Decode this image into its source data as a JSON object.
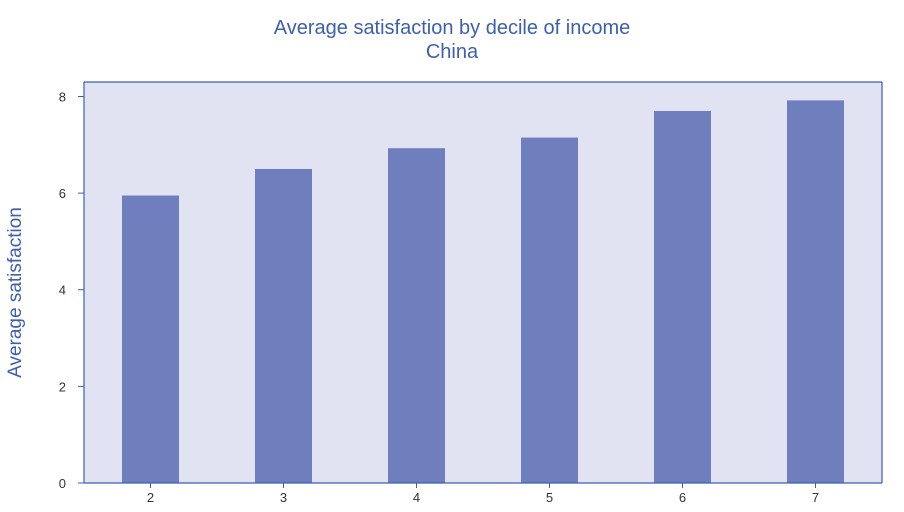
{
  "chart_data": {
    "type": "bar",
    "title": "Average satisfaction by decile of income",
    "subtitle": "China",
    "xlabel": "",
    "ylabel": "Average satisfaction",
    "categories": [
      "2",
      "3",
      "4",
      "5",
      "6",
      "7"
    ],
    "values": [
      5.95,
      6.5,
      6.93,
      7.15,
      7.7,
      7.92
    ],
    "ylim": [
      0,
      8.3
    ],
    "yticks": [
      0,
      2,
      4,
      6,
      8
    ],
    "grid": false,
    "legend": "none",
    "colors": {
      "bar": "#6f7fbe",
      "plot_background": "#e1e3f3",
      "axis": "#3d5fb0",
      "title": "#3d5fb0"
    }
  }
}
